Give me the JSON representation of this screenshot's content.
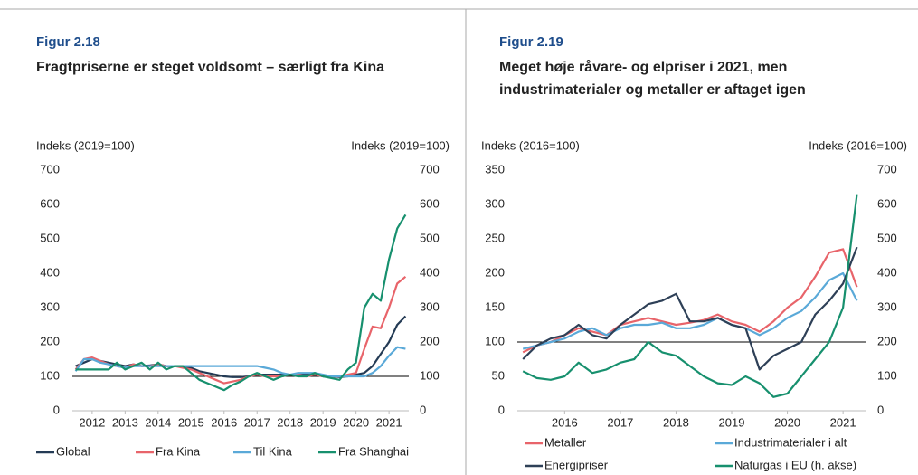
{
  "chart_data": [
    {
      "type": "line",
      "figure_label": "Figur 2.18",
      "title": "Fragtpriserne er steget voldsomt – særligt fra Kina",
      "y_label": "Indeks (2019=100)",
      "y2_label": "Indeks (2019=100)",
      "ylim": [
        0,
        700
      ],
      "yticks": [
        0,
        100,
        200,
        300,
        400,
        500,
        600,
        700
      ],
      "y2lim": [
        0,
        700
      ],
      "y2ticks": [
        0,
        100,
        200,
        300,
        400,
        500,
        600,
        700
      ],
      "xlim": [
        2011.4,
        2021.6
      ],
      "xticks": [
        {
          "value": 2012,
          "label": "2012"
        },
        {
          "value": 2013,
          "label": "2013"
        },
        {
          "value": 2014,
          "label": "2014"
        },
        {
          "value": 2015,
          "label": "2015"
        },
        {
          "value": 2016,
          "label": "2016"
        },
        {
          "value": 2017,
          "label": "2017"
        },
        {
          "value": 2018,
          "label": "2018"
        },
        {
          "value": 2019,
          "label": "2019"
        },
        {
          "value": 2020,
          "label": "2020"
        },
        {
          "value": 2021,
          "label": "2021"
        }
      ],
      "reference_line": 100,
      "legend": "bottom-row",
      "x": [
        2011.5,
        2011.75,
        2012,
        2012.25,
        2012.5,
        2012.75,
        2013,
        2013.25,
        2013.5,
        2013.75,
        2014,
        2014.25,
        2014.5,
        2014.75,
        2015,
        2015.25,
        2015.5,
        2015.75,
        2016,
        2016.25,
        2016.5,
        2016.75,
        2017,
        2017.25,
        2017.5,
        2017.75,
        2018,
        2018.25,
        2018.5,
        2018.75,
        2019,
        2019.25,
        2019.5,
        2019.75,
        2020,
        2020.25,
        2020.5,
        2020.75,
        2021,
        2021.25,
        2021.5
      ],
      "series": [
        {
          "name": "Global",
          "color": "#243b55",
          "values": [
            130,
            140,
            150,
            145,
            140,
            135,
            130,
            135,
            130,
            132,
            135,
            130,
            130,
            128,
            125,
            115,
            110,
            105,
            100,
            98,
            98,
            100,
            105,
            105,
            105,
            105,
            105,
            105,
            105,
            105,
            100,
            100,
            98,
            100,
            105,
            110,
            130,
            165,
            200,
            250,
            275
          ]
        },
        {
          "name": "Fra Kina",
          "color": "#e8646a",
          "values": [
            120,
            150,
            155,
            145,
            135,
            130,
            125,
            135,
            130,
            130,
            135,
            130,
            130,
            125,
            120,
            110,
            100,
            90,
            80,
            85,
            90,
            100,
            105,
            100,
            100,
            100,
            105,
            105,
            100,
            105,
            100,
            100,
            100,
            105,
            110,
            180,
            245,
            240,
            300,
            370,
            390
          ]
        },
        {
          "name": "Til Kina",
          "color": "#5aa9d8",
          "values": [
            115,
            150,
            150,
            140,
            135,
            130,
            125,
            130,
            130,
            130,
            130,
            130,
            130,
            130,
            130,
            130,
            130,
            130,
            130,
            130,
            130,
            130,
            130,
            125,
            120,
            110,
            105,
            110,
            110,
            110,
            105,
            100,
            100,
            100,
            100,
            100,
            110,
            130,
            160,
            185,
            180
          ]
        },
        {
          "name": "Fra Shanghai",
          "color": "#17906e",
          "values": [
            120,
            120,
            120,
            120,
            120,
            140,
            120,
            130,
            140,
            120,
            140,
            120,
            130,
            130,
            110,
            90,
            80,
            70,
            60,
            75,
            85,
            100,
            110,
            100,
            90,
            100,
            105,
            100,
            100,
            110,
            100,
            95,
            90,
            120,
            140,
            300,
            340,
            320,
            440,
            530,
            570
          ]
        }
      ]
    },
    {
      "type": "line",
      "figure_label": "Figur 2.19",
      "title": "Meget høje råvare- og elpriser i 2021, men industrimaterialer og metaller er aftaget igen",
      "y_label": "Indeks (2016=100)",
      "y2_label": "Indeks (2016=100)",
      "ylim": [
        0,
        350
      ],
      "yticks": [
        0,
        50,
        100,
        150,
        200,
        250,
        300,
        350
      ],
      "y2lim": [
        0,
        700
      ],
      "y2ticks": [
        0,
        100,
        200,
        300,
        400,
        500,
        600,
        700
      ],
      "xlim": [
        2015.65,
        2021.92
      ],
      "xticks": [
        {
          "value": 2016.5,
          "label": "2016"
        },
        {
          "value": 2017.5,
          "label": "2017"
        },
        {
          "value": 2018.5,
          "label": "2018"
        },
        {
          "value": 2019.5,
          "label": "2019"
        },
        {
          "value": 2020.5,
          "label": "2020"
        },
        {
          "value": 2021.5,
          "label": "2021"
        }
      ],
      "reference_line": 100,
      "legend": "bottom-grid",
      "x": [
        2015.75,
        2016,
        2016.25,
        2016.5,
        2016.75,
        2017,
        2017.25,
        2017.5,
        2017.75,
        2018,
        2018.25,
        2018.5,
        2018.75,
        2019,
        2019.25,
        2019.5,
        2019.75,
        2020,
        2020.25,
        2020.5,
        2020.75,
        2021,
        2021.25,
        2021.5,
        2021.75
      ],
      "series": [
        {
          "name": "Metaller",
          "color": "#e8646a",
          "values": [
            85,
            95,
            100,
            110,
            120,
            115,
            110,
            125,
            130,
            135,
            130,
            125,
            128,
            132,
            140,
            130,
            125,
            115,
            130,
            150,
            165,
            195,
            230,
            235,
            180
          ]
        },
        {
          "name": "Industrimaterialer i alt",
          "color": "#5aa9d8",
          "values": [
            90,
            95,
            100,
            105,
            115,
            120,
            110,
            120,
            125,
            125,
            128,
            120,
            120,
            125,
            135,
            125,
            120,
            110,
            120,
            135,
            145,
            165,
            190,
            200,
            160
          ]
        },
        {
          "name": "Energipriser",
          "color": "#2e4057",
          "values": [
            75,
            95,
            105,
            110,
            125,
            110,
            105,
            125,
            140,
            155,
            160,
            170,
            130,
            130,
            135,
            125,
            120,
            60,
            80,
            90,
            100,
            140,
            160,
            185,
            238
          ]
        },
        {
          "name": "Naturgas i EU (h. akse)",
          "color": "#17906e",
          "axis": "y2",
          "values": [
            115,
            95,
            90,
            100,
            140,
            110,
            120,
            140,
            150,
            200,
            170,
            160,
            130,
            100,
            80,
            75,
            100,
            80,
            40,
            50,
            100,
            150,
            200,
            300,
            630
          ]
        }
      ]
    }
  ]
}
